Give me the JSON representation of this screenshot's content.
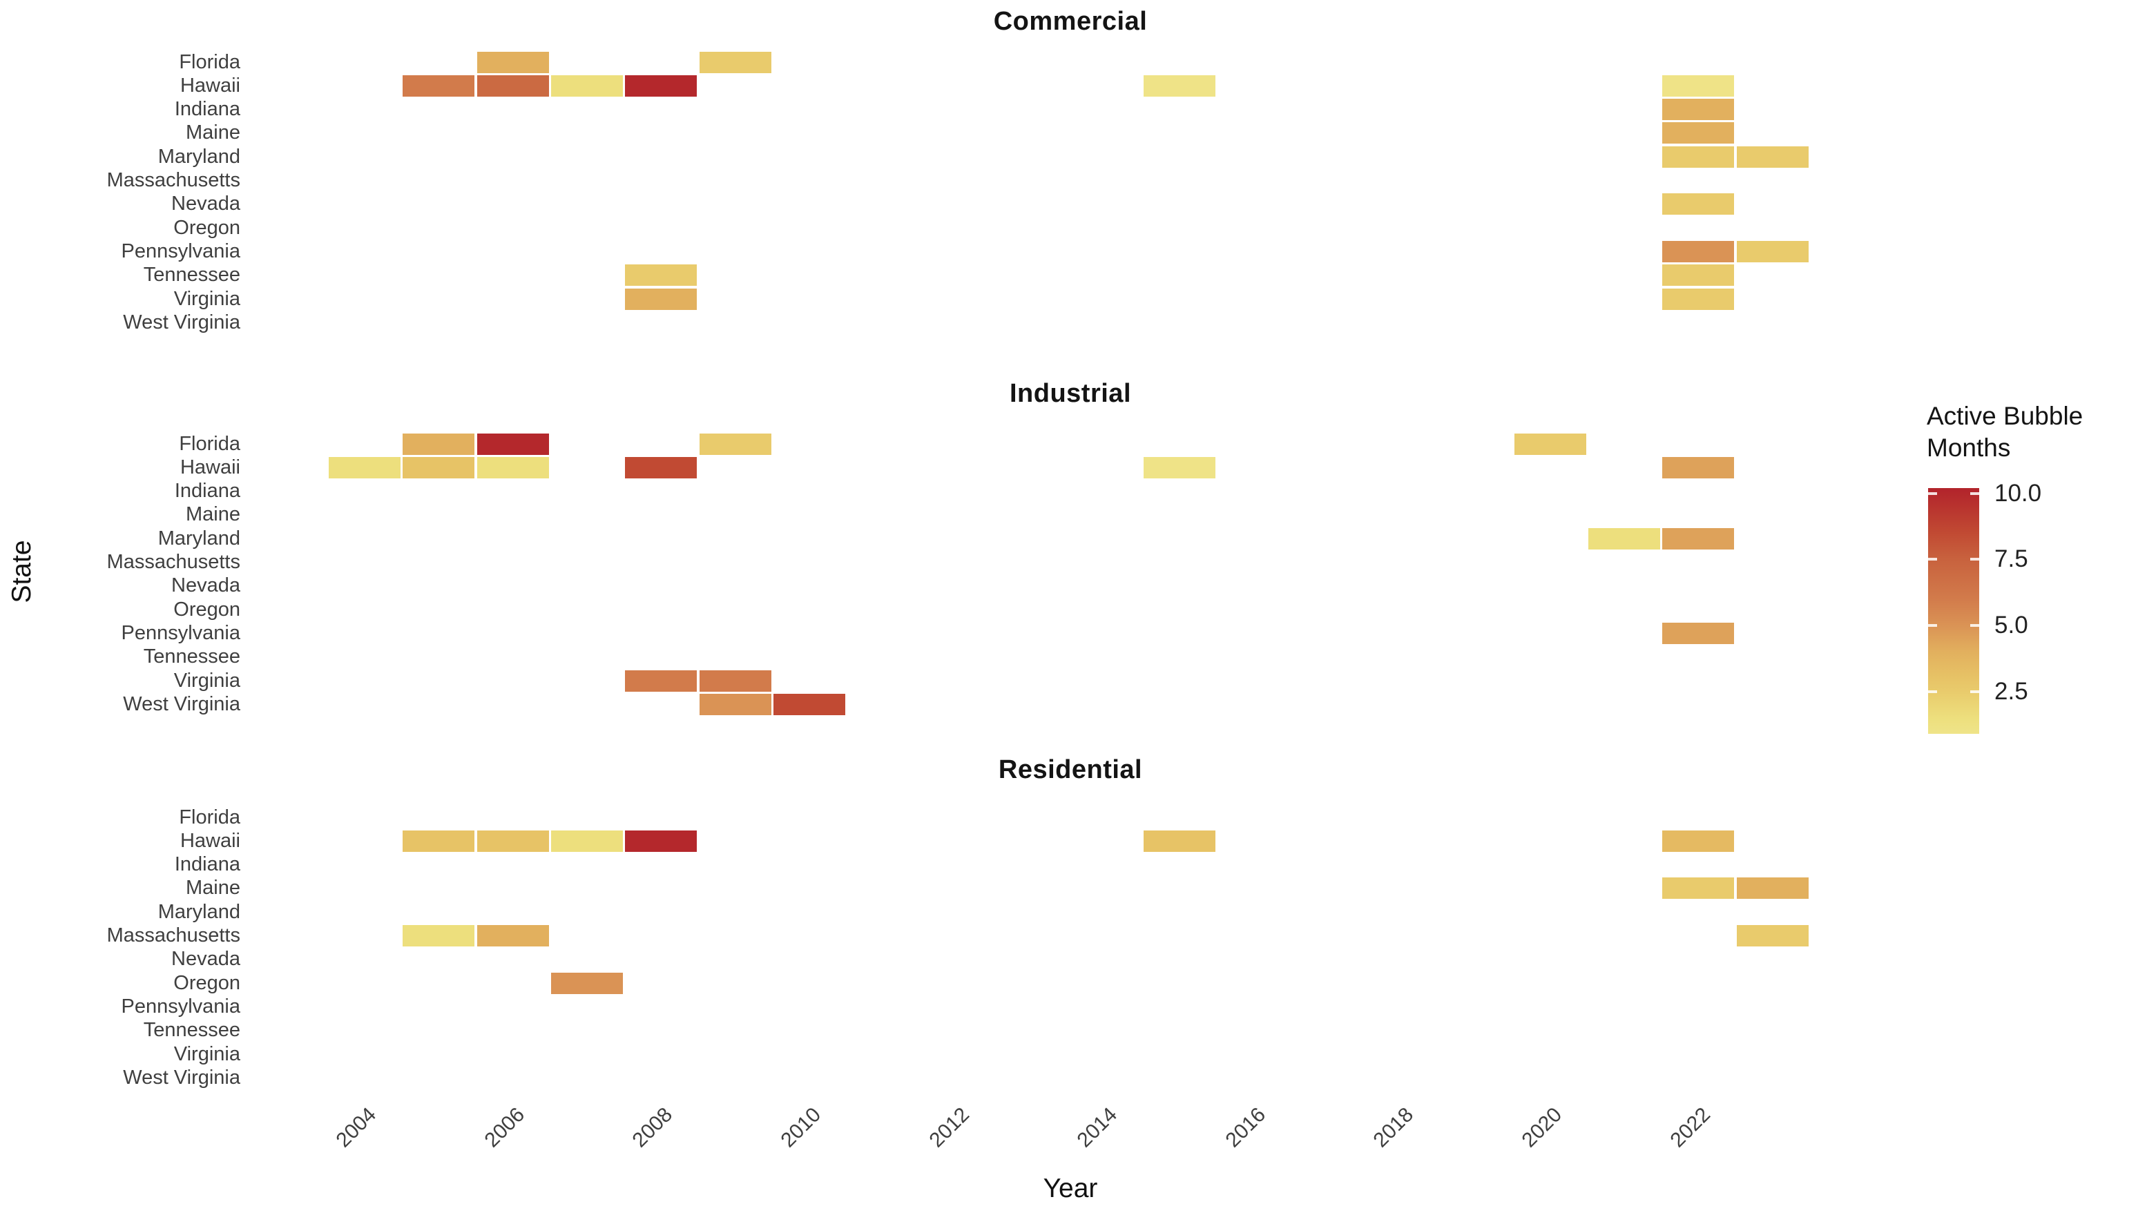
{
  "chart_data": {
    "type": "heatmap",
    "title": "",
    "xlabel": "Year",
    "ylabel": "State",
    "facets": [
      "Commercial",
      "Industrial",
      "Residential"
    ],
    "states": [
      "Florida",
      "Hawaii",
      "Indiana",
      "Maine",
      "Maryland",
      "Massachusetts",
      "Nevada",
      "Oregon",
      "Pennsylvania",
      "Tennessee",
      "Virginia",
      "West Virginia"
    ],
    "x_ticks": [
      "2004",
      "2006",
      "2008",
      "2010",
      "2012",
      "2014",
      "2016",
      "2018",
      "2020",
      "2022"
    ],
    "x_range": [
      2003,
      2023
    ],
    "legend": {
      "title_lines": [
        "Active Bubble",
        "Months"
      ],
      "tick_labels": [
        "10.0",
        "7.5",
        "5.0",
        "2.5"
      ],
      "tick_values": [
        10.0,
        7.5,
        5.0,
        2.5
      ],
      "bar_value_top": 10.2,
      "bar_value_bottom": 0.9
    },
    "color_scale": {
      "stops": [
        {
          "value": 10.2,
          "hex": "#B2232B"
        },
        {
          "value": 8.5,
          "hex": "#C14A33"
        },
        {
          "value": 7.5,
          "hex": "#C8623E"
        },
        {
          "value": 6.0,
          "hex": "#D27B4B"
        },
        {
          "value": 5.0,
          "hex": "#DA9355"
        },
        {
          "value": 4.0,
          "hex": "#E2B05E"
        },
        {
          "value": 3.0,
          "hex": "#E7C366"
        },
        {
          "value": 2.5,
          "hex": "#E9CB6C"
        },
        {
          "value": 1.5,
          "hex": "#EDDF7D"
        },
        {
          "value": 0.9,
          "hex": "#EFE489"
        }
      ]
    },
    "series": [
      {
        "facet": "Commercial",
        "tiles": [
          {
            "state": "Florida",
            "year": 2006,
            "months": 4
          },
          {
            "state": "Florida",
            "year": 2009,
            "months": 2.5
          },
          {
            "state": "Hawaii",
            "year": 2005,
            "months": 6
          },
          {
            "state": "Hawaii",
            "year": 2006,
            "months": 7
          },
          {
            "state": "Hawaii",
            "year": 2007,
            "months": 1.5
          },
          {
            "state": "Hawaii",
            "year": 2008,
            "months": 10
          },
          {
            "state": "Hawaii",
            "year": 2015,
            "months": 1
          },
          {
            "state": "Hawaii",
            "year": 2022,
            "months": 1
          },
          {
            "state": "Indiana",
            "year": 2022,
            "months": 4
          },
          {
            "state": "Maine",
            "year": 2022,
            "months": 4
          },
          {
            "state": "Maryland",
            "year": 2022,
            "months": 2.5
          },
          {
            "state": "Maryland",
            "year": 2023,
            "months": 2.5
          },
          {
            "state": "Nevada",
            "year": 2022,
            "months": 2.5
          },
          {
            "state": "Pennsylvania",
            "year": 2022,
            "months": 5
          },
          {
            "state": "Pennsylvania",
            "year": 2023,
            "months": 2.5
          },
          {
            "state": "Tennessee",
            "year": 2008,
            "months": 2.5
          },
          {
            "state": "Tennessee",
            "year": 2022,
            "months": 2.5
          },
          {
            "state": "Virginia",
            "year": 2008,
            "months": 4
          },
          {
            "state": "Virginia",
            "year": 2022,
            "months": 2.5
          }
        ]
      },
      {
        "facet": "Industrial",
        "tiles": [
          {
            "state": "Florida",
            "year": 2005,
            "months": 4
          },
          {
            "state": "Florida",
            "year": 2006,
            "months": 10
          },
          {
            "state": "Florida",
            "year": 2009,
            "months": 2.5
          },
          {
            "state": "Florida",
            "year": 2020,
            "months": 2.5
          },
          {
            "state": "Hawaii",
            "year": 2004,
            "months": 1.5
          },
          {
            "state": "Hawaii",
            "year": 2005,
            "months": 3
          },
          {
            "state": "Hawaii",
            "year": 2006,
            "months": 1.5
          },
          {
            "state": "Hawaii",
            "year": 2008,
            "months": 8.5
          },
          {
            "state": "Hawaii",
            "year": 2015,
            "months": 1
          },
          {
            "state": "Hawaii",
            "year": 2022,
            "months": 4.5
          },
          {
            "state": "Maryland",
            "year": 2021,
            "months": 1.5
          },
          {
            "state": "Maryland",
            "year": 2022,
            "months": 4.5
          },
          {
            "state": "Pennsylvania",
            "year": 2022,
            "months": 4.5
          },
          {
            "state": "Virginia",
            "year": 2008,
            "months": 6
          },
          {
            "state": "Virginia",
            "year": 2009,
            "months": 6
          },
          {
            "state": "West Virginia",
            "year": 2009,
            "months": 5
          },
          {
            "state": "West Virginia",
            "year": 2010,
            "months": 8.5
          }
        ]
      },
      {
        "facet": "Residential",
        "tiles": [
          {
            "state": "Hawaii",
            "year": 2005,
            "months": 3
          },
          {
            "state": "Hawaii",
            "year": 2006,
            "months": 3
          },
          {
            "state": "Hawaii",
            "year": 2007,
            "months": 1.5
          },
          {
            "state": "Hawaii",
            "year": 2008,
            "months": 10
          },
          {
            "state": "Hawaii",
            "year": 2015,
            "months": 3
          },
          {
            "state": "Hawaii",
            "year": 2022,
            "months": 3.5
          },
          {
            "state": "Maine",
            "year": 2022,
            "months": 2.5
          },
          {
            "state": "Maine",
            "year": 2023,
            "months": 4
          },
          {
            "state": "Massachusetts",
            "year": 2005,
            "months": 1.5
          },
          {
            "state": "Massachusetts",
            "year": 2006,
            "months": 4
          },
          {
            "state": "Massachusetts",
            "year": 2023,
            "months": 2.5
          },
          {
            "state": "Oregon",
            "year": 2007,
            "months": 5
          }
        ]
      }
    ]
  }
}
